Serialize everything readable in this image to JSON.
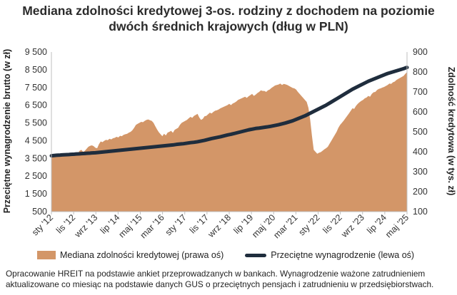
{
  "title_line1": "Mediana zdolności kredytowej 3-os. rodziny z dochodem na poziomie",
  "title_line2": "dwóch średnich krajowych (dług w PLN)",
  "legend": {
    "area": "Mediana zdolności kredytowej (prawa oś)",
    "line": "Przeciętne wynagrodzenie (lewa oś)"
  },
  "source_line1": "Opracowanie HREIT na podstawie ankiet przeprowadzanych w bankach. Wynagrodzenie ważone zatrudnieniem",
  "source_line2": "aktualizowane co miesiąc na podstawie danych GUS o przeciętnych pensjach i zatrudnieniu w przedsiębiorstwach.",
  "chart_data": {
    "type": "line",
    "ylabel_left": "Przeciętne wynagrodzenie brutto (w zł)",
    "ylabel_right": "Zdolność kredytowa (w tys. zł)",
    "ylim_left": [
      500,
      9500
    ],
    "ylim_right": [
      100,
      900
    ],
    "yticks_left": [
      "500",
      "1 500",
      "2 500",
      "3 500",
      "4 500",
      "5 500",
      "6 500",
      "7 500",
      "8 500",
      "9 500"
    ],
    "yticks_right": [
      "100",
      "200",
      "300",
      "400",
      "500",
      "600",
      "700",
      "800",
      "900"
    ],
    "xtick_labels": [
      "sty '12",
      "lis '12",
      "wrz '13",
      "lip '14",
      "maj '15",
      "mar '16",
      "sty '17",
      "lis '17",
      "wrz '18",
      "lip '19",
      "maj '20",
      "mar '21",
      "sty '22",
      "lis '22",
      "wrz '23",
      "lip '24",
      "maj '25"
    ],
    "grid": false,
    "legend_position": "bottom",
    "colors": {
      "area": "#d39668",
      "line": "#1f2d3d"
    },
    "series": [
      {
        "name": "Mediana zdolności kredytowej (prawa oś)",
        "axis": "right",
        "style": "area",
        "values": [
          375,
          382,
          378,
          385,
          383,
          388,
          380,
          386,
          390,
          384,
          388,
          393,
          386,
          392,
          398,
          393,
          405,
          410,
          400,
          405,
          415,
          425,
          430,
          432,
          428,
          420,
          418,
          438,
          452,
          448,
          455,
          460,
          458,
          465,
          462,
          468,
          470,
          475,
          472,
          480,
          478,
          485,
          488,
          490,
          496,
          500,
          508,
          520,
          535,
          540,
          545,
          550,
          548,
          555,
          560,
          562,
          558,
          555,
          545,
          528,
          512,
          498,
          488,
          478,
          490,
          482,
          496,
          500,
          505,
          495,
          510,
          515,
          520,
          535,
          545,
          550,
          555,
          560,
          568,
          575,
          570,
          580,
          585,
          590,
          572,
          560,
          565,
          578,
          580,
          588,
          596,
          592,
          600,
          606,
          608,
          612,
          618,
          622,
          626,
          630,
          634,
          640,
          634,
          642,
          646,
          652,
          660,
          664,
          668,
          672,
          676,
          670,
          678,
          684,
          690,
          680,
          686,
          694,
          700,
          708,
          705,
          705,
          700,
          708,
          712,
          720,
          726,
          732,
          735,
          737,
          742,
          735,
          740,
          738,
          735,
          730,
          725,
          720,
          718,
          712,
          700,
          690,
          680,
          670,
          660,
          650,
          620,
          560,
          480,
          410,
          400,
          390,
          395,
          398,
          405,
          412,
          418,
          425,
          440,
          455,
          470,
          485,
          500,
          520,
          535,
          545,
          556,
          568,
          580,
          592,
          605,
          618,
          615,
          630,
          640,
          648,
          655,
          660,
          668,
          672,
          680,
          676,
          690,
          698,
          700,
          710,
          715,
          718,
          722,
          725,
          730,
          735,
          742,
          740,
          748,
          752,
          760,
          765,
          770,
          775,
          780,
          790,
          800
        ]
      },
      {
        "name": "Przeciętne wynagrodzenie (lewa oś)",
        "axis": "left",
        "style": "line",
        "values": [
          3650,
          3660,
          3670,
          3680,
          3685,
          3690,
          3700,
          3705,
          3710,
          3715,
          3720,
          3730,
          3735,
          3740,
          3750,
          3755,
          3760,
          3770,
          3775,
          3780,
          3790,
          3795,
          3800,
          3810,
          3815,
          3820,
          3830,
          3840,
          3850,
          3860,
          3870,
          3880,
          3890,
          3900,
          3910,
          3920,
          3930,
          3940,
          3950,
          3960,
          3970,
          3980,
          3990,
          4000,
          4010,
          4020,
          4030,
          4040,
          4050,
          4060,
          4070,
          4080,
          4090,
          4100,
          4110,
          4120,
          4130,
          4140,
          4150,
          4160,
          4170,
          4180,
          4190,
          4200,
          4210,
          4220,
          4230,
          4240,
          4250,
          4260,
          4275,
          4290,
          4300,
          4310,
          4320,
          4330,
          4345,
          4360,
          4375,
          4390,
          4400,
          4410,
          4425,
          4440,
          4460,
          4480,
          4500,
          4520,
          4545,
          4570,
          4595,
          4620,
          4640,
          4660,
          4680,
          4700,
          4720,
          4745,
          4770,
          4795,
          4820,
          4840,
          4860,
          4885,
          4910,
          4935,
          4960,
          4985,
          5010,
          5035,
          5060,
          5085,
          5110,
          5130,
          5150,
          5170,
          5190,
          5200,
          5210,
          5225,
          5240,
          5255,
          5270,
          5285,
          5300,
          5320,
          5340,
          5360,
          5380,
          5400,
          5425,
          5450,
          5475,
          5500,
          5530,
          5560,
          5590,
          5620,
          5660,
          5700,
          5740,
          5780,
          5820,
          5860,
          5900,
          5950,
          6000,
          6050,
          6100,
          6150,
          6200,
          6250,
          6300,
          6350,
          6400,
          6450,
          6500,
          6560,
          6620,
          6680,
          6740,
          6800,
          6860,
          6920,
          6980,
          7040,
          7100,
          7160,
          7220,
          7280,
          7340,
          7400,
          7450,
          7500,
          7550,
          7600,
          7650,
          7700,
          7750,
          7800,
          7850,
          7890,
          7930,
          7970,
          8010,
          8050,
          8090,
          8130,
          8170,
          8210,
          8250,
          8290,
          8320,
          8350,
          8380,
          8410,
          8440,
          8470,
          8500,
          8530,
          8560,
          8600,
          8630
        ]
      }
    ]
  }
}
